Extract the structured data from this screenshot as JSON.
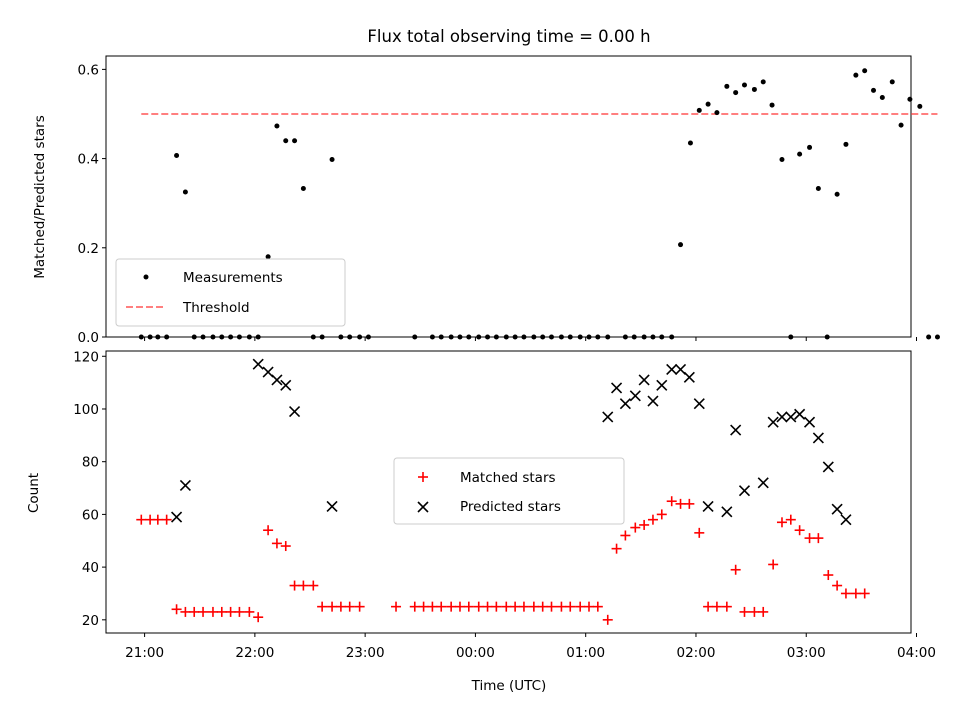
{
  "figure": {
    "title": "Flux total observing time = 0.00 h",
    "xlabel": "Time (UTC)"
  },
  "chart_data": [
    {
      "type": "scatter",
      "title": "Flux total observing time = 0.00 h",
      "ylabel": "Matched/Predicted stars",
      "xlim": [
        -0.35,
        6.95
      ],
      "ylim": [
        0,
        0.63
      ],
      "x_ticks": [
        0,
        1,
        2,
        3,
        4,
        5,
        6,
        7
      ],
      "y_ticks": [
        0.0,
        0.2,
        0.4,
        0.6
      ],
      "y_tick_labels": [
        "0.0",
        "0.2",
        "0.4",
        "0.6"
      ],
      "legend": {
        "position": "lower-left",
        "entries": [
          "Measurements",
          "Threshold"
        ]
      },
      "series": [
        {
          "name": "Measurements",
          "marker": "dot",
          "color": "#000000",
          "points": [
            [
              -0.03,
              0
            ],
            [
              0.05,
              0
            ],
            [
              0.12,
              0
            ],
            [
              0.2,
              0
            ],
            [
              0.29,
              0.407
            ],
            [
              0.37,
              0.325
            ],
            [
              0.45,
              0
            ],
            [
              0.53,
              0
            ],
            [
              0.62,
              0
            ],
            [
              0.7,
              0
            ],
            [
              0.78,
              0
            ],
            [
              0.86,
              0
            ],
            [
              0.95,
              0
            ],
            [
              1.03,
              0
            ],
            [
              1.12,
              0.18
            ],
            [
              1.2,
              0.473
            ],
            [
              1.28,
              0.44
            ],
            [
              1.36,
              0.44
            ],
            [
              1.44,
              0.333
            ],
            [
              1.53,
              0
            ],
            [
              1.61,
              0
            ],
            [
              1.7,
              0.398
            ],
            [
              1.78,
              0
            ],
            [
              1.86,
              0
            ],
            [
              1.95,
              0
            ],
            [
              2.03,
              0
            ],
            [
              2.45,
              0
            ],
            [
              2.61,
              0
            ],
            [
              2.69,
              0
            ],
            [
              2.78,
              0
            ],
            [
              2.86,
              0
            ],
            [
              2.94,
              0
            ],
            [
              3.03,
              0
            ],
            [
              3.11,
              0
            ],
            [
              3.19,
              0
            ],
            [
              3.28,
              0
            ],
            [
              3.36,
              0
            ],
            [
              3.44,
              0
            ],
            [
              3.53,
              0
            ],
            [
              3.61,
              0
            ],
            [
              3.69,
              0
            ],
            [
              3.78,
              0
            ],
            [
              3.86,
              0
            ],
            [
              3.95,
              0
            ],
            [
              4.03,
              0
            ],
            [
              4.11,
              0
            ],
            [
              4.2,
              0
            ],
            [
              4.36,
              0
            ],
            [
              4.44,
              0
            ],
            [
              4.53,
              0
            ],
            [
              4.61,
              0
            ],
            [
              4.69,
              0
            ],
            [
              4.78,
              0
            ],
            [
              4.86,
              0.207
            ],
            [
              4.95,
              0.435
            ],
            [
              5.03,
              0.508
            ],
            [
              5.11,
              0.522
            ],
            [
              5.19,
              0.503
            ],
            [
              5.28,
              0.562
            ],
            [
              5.36,
              0.548
            ],
            [
              5.44,
              0.565
            ],
            [
              5.53,
              0.555
            ],
            [
              5.61,
              0.572
            ],
            [
              5.69,
              0.52
            ],
            [
              5.78,
              0.398
            ],
            [
              5.86,
              0
            ],
            [
              5.94,
              0.41
            ],
            [
              6.03,
              0.425
            ],
            [
              6.11,
              0.333
            ],
            [
              6.19,
              0
            ],
            [
              6.28,
              0.32
            ],
            [
              6.36,
              0.432
            ],
            [
              6.45,
              0.587
            ],
            [
              6.53,
              0.597
            ],
            [
              6.61,
              0.553
            ],
            [
              6.69,
              0.537
            ],
            [
              6.78,
              0.572
            ],
            [
              6.86,
              0.475
            ],
            [
              6.94,
              0.533
            ],
            [
              7.03,
              0.517
            ],
            [
              7.11,
              0
            ],
            [
              7.19,
              0
            ]
          ]
        },
        {
          "name": "Threshold",
          "style": "dashed",
          "color": "#ff7f7f",
          "x": [
            -0.03,
            7.19
          ],
          "y": [
            0.5,
            0.5
          ]
        }
      ]
    },
    {
      "type": "scatter",
      "xlabel": "Time (UTC)",
      "ylabel": "Count",
      "xlim": [
        -0.35,
        6.95
      ],
      "ylim": [
        15,
        122
      ],
      "x_ticks": [
        0,
        1,
        2,
        3,
        4,
        5,
        6,
        7
      ],
      "x_tick_labels": [
        "21:00",
        "22:00",
        "23:00",
        "00:00",
        "01:00",
        "02:00",
        "03:00",
        "04:00"
      ],
      "y_ticks": [
        20,
        40,
        60,
        80,
        100,
        120
      ],
      "y_tick_labels": [
        "20",
        "40",
        "60",
        "80",
        "100",
        "120"
      ],
      "legend": {
        "position": "center",
        "entries": [
          "Matched stars",
          "Predicted stars"
        ]
      },
      "series": [
        {
          "name": "Matched stars",
          "marker": "plus",
          "color": "#ff0000",
          "points": [
            [
              -0.03,
              58
            ],
            [
              0.05,
              58
            ],
            [
              0.12,
              58
            ],
            [
              0.2,
              58
            ],
            [
              0.29,
              24
            ],
            [
              0.37,
              23
            ],
            [
              0.45,
              23
            ],
            [
              0.53,
              23
            ],
            [
              0.62,
              23
            ],
            [
              0.7,
              23
            ],
            [
              0.78,
              23
            ],
            [
              0.86,
              23
            ],
            [
              0.95,
              23
            ],
            [
              1.03,
              21
            ],
            [
              1.12,
              54
            ],
            [
              1.2,
              49
            ],
            [
              1.28,
              48
            ],
            [
              1.36,
              33
            ],
            [
              1.44,
              33
            ],
            [
              1.53,
              33
            ],
            [
              1.61,
              25
            ],
            [
              1.7,
              25
            ],
            [
              1.78,
              25
            ],
            [
              1.86,
              25
            ],
            [
              1.95,
              25
            ],
            [
              2.28,
              25
            ],
            [
              2.45,
              25
            ],
            [
              2.53,
              25
            ],
            [
              2.61,
              25
            ],
            [
              2.69,
              25
            ],
            [
              2.78,
              25
            ],
            [
              2.86,
              25
            ],
            [
              2.94,
              25
            ],
            [
              3.03,
              25
            ],
            [
              3.11,
              25
            ],
            [
              3.19,
              25
            ],
            [
              3.28,
              25
            ],
            [
              3.36,
              25
            ],
            [
              3.44,
              25
            ],
            [
              3.53,
              25
            ],
            [
              3.61,
              25
            ],
            [
              3.69,
              25
            ],
            [
              3.78,
              25
            ],
            [
              3.86,
              25
            ],
            [
              3.95,
              25
            ],
            [
              4.03,
              25
            ],
            [
              4.11,
              25
            ],
            [
              4.2,
              20
            ],
            [
              4.28,
              47
            ],
            [
              4.36,
              52
            ],
            [
              4.45,
              55
            ],
            [
              4.53,
              56
            ],
            [
              4.61,
              58
            ],
            [
              4.69,
              60
            ],
            [
              4.78,
              65
            ],
            [
              4.86,
              64
            ],
            [
              4.94,
              64
            ],
            [
              5.03,
              53
            ],
            [
              5.11,
              25
            ],
            [
              5.19,
              25
            ],
            [
              5.28,
              25
            ],
            [
              5.36,
              39
            ],
            [
              5.44,
              23
            ],
            [
              5.53,
              23
            ],
            [
              5.61,
              23
            ],
            [
              5.7,
              41
            ],
            [
              5.78,
              57
            ],
            [
              5.86,
              58
            ],
            [
              5.94,
              54
            ],
            [
              6.03,
              51
            ],
            [
              6.11,
              51
            ],
            [
              6.2,
              37
            ],
            [
              6.28,
              33
            ],
            [
              6.36,
              30
            ],
            [
              6.45,
              30
            ],
            [
              6.53,
              30
            ]
          ]
        },
        {
          "name": "Predicted stars",
          "marker": "x",
          "color": "#000000",
          "points": [
            [
              0.29,
              59
            ],
            [
              0.37,
              71
            ],
            [
              1.03,
              117
            ],
            [
              1.12,
              114
            ],
            [
              1.2,
              111
            ],
            [
              1.28,
              109
            ],
            [
              1.36,
              99
            ],
            [
              1.7,
              63
            ],
            [
              4.2,
              97
            ],
            [
              4.28,
              108
            ],
            [
              4.36,
              102
            ],
            [
              4.45,
              105
            ],
            [
              4.53,
              111
            ],
            [
              4.61,
              103
            ],
            [
              4.69,
              109
            ],
            [
              4.78,
              115
            ],
            [
              4.86,
              115
            ],
            [
              4.94,
              112
            ],
            [
              5.03,
              102
            ],
            [
              5.11,
              63
            ],
            [
              5.28,
              61
            ],
            [
              5.36,
              92
            ],
            [
              5.44,
              69
            ],
            [
              5.61,
              72
            ],
            [
              5.7,
              95
            ],
            [
              5.78,
              97
            ],
            [
              5.86,
              97
            ],
            [
              5.94,
              98
            ],
            [
              6.03,
              95
            ],
            [
              6.11,
              89
            ],
            [
              6.2,
              78
            ],
            [
              6.28,
              62
            ],
            [
              6.36,
              58
            ]
          ]
        }
      ]
    }
  ]
}
